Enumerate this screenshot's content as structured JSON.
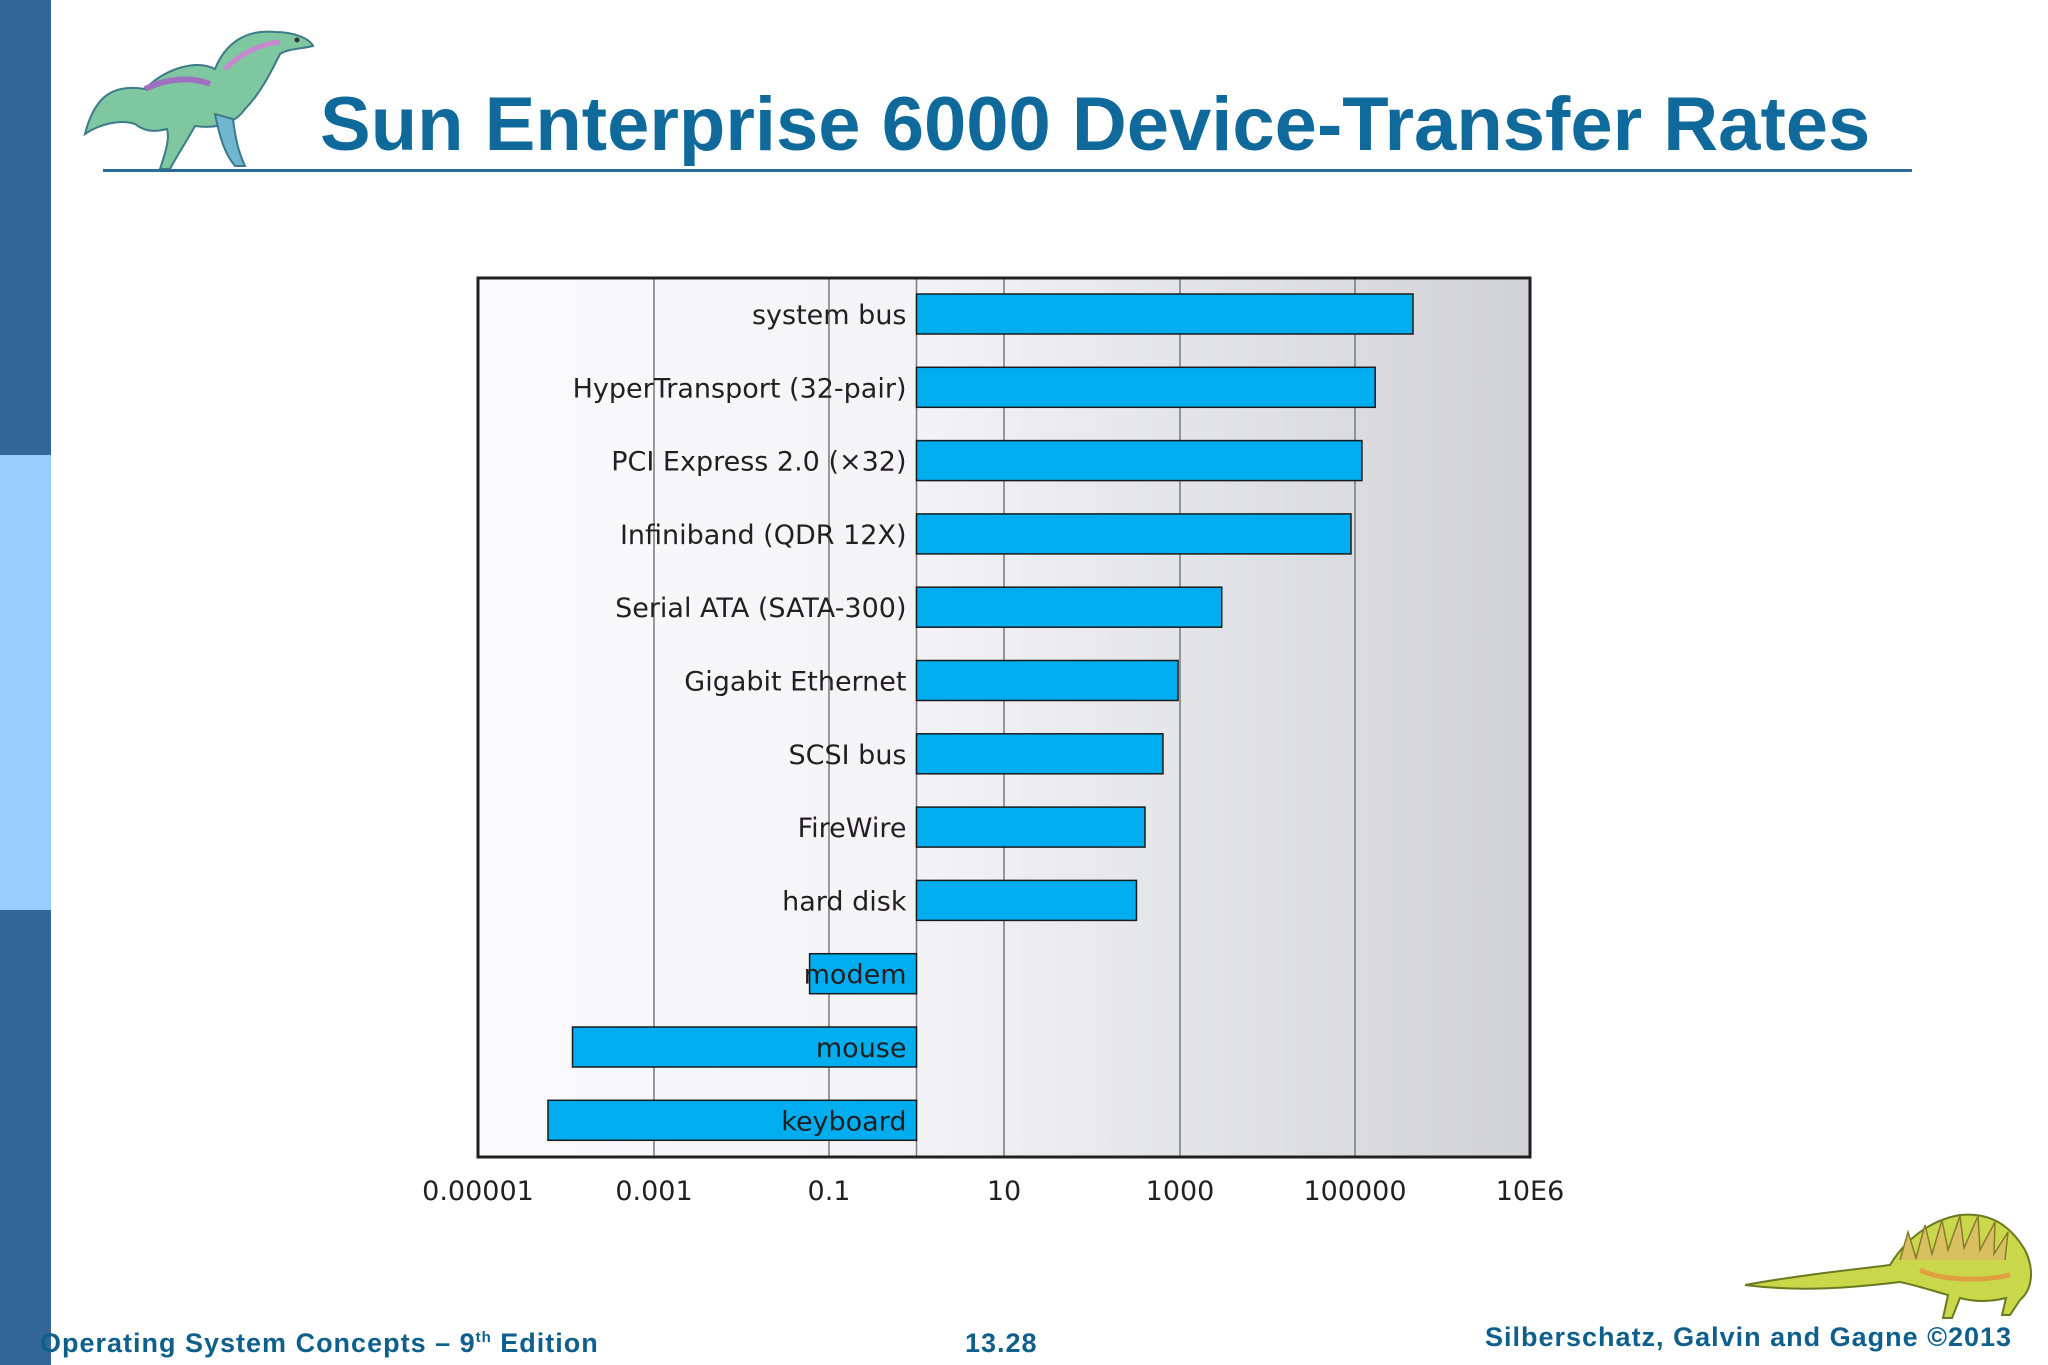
{
  "slide": {
    "title": "Sun Enterprise 6000 Device-Transfer Rates",
    "footer_left_prefix": "Operating System Concepts – 9",
    "footer_left_sup": "th",
    "footer_left_suffix": " Edition",
    "footer_center": "13.28",
    "footer_right": "Silberschatz, Galvin and Gagne ©2013",
    "colors": {
      "sidebar_dark": "#336699",
      "sidebar_light": "#99ccff",
      "title": "#0f6a9b",
      "bar": "#00aeef"
    },
    "decorations": [
      "dinosaur-illustration-top",
      "dinosaur-illustration-bottom"
    ]
  },
  "chart_data": {
    "type": "bar",
    "orientation": "horizontal",
    "x_scale": "log",
    "xlim": [
      1e-05,
      10000000
    ],
    "grid": true,
    "x_tick_labels": [
      "0.00001",
      "0.001",
      "0.1",
      "10",
      "1000",
      "100000",
      "10E6"
    ],
    "x_tick_values": [
      1e-05,
      0.001,
      0.1,
      10,
      1000,
      100000,
      10000000
    ],
    "bar_base": 1,
    "categories": [
      "system bus",
      "HyperTransport (32-pair)",
      "PCI Express 2.0 (×32)",
      "Infiniband (QDR 12X)",
      "Serial ATA (SATA-300)",
      "Gigabit Ethernet",
      "SCSI bus",
      "FireWire",
      "hard disk",
      "modem",
      "mouse",
      "keyboard"
    ],
    "values": [
      460000,
      170000,
      120000,
      90000,
      3000,
      950,
      640,
      400,
      320,
      0.06,
      0.0001,
      5e-05
    ]
  }
}
